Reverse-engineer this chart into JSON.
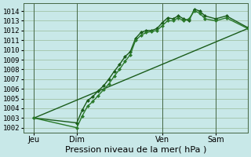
{
  "bg_color": "#c8e8e8",
  "grid_color": "#99bb99",
  "line_color_dark": "#1a5c1a",
  "line_color_mid": "#2a7a2a",
  "title": "Pression niveau de la mer( hPa )",
  "ylabel_ticks": [
    1002,
    1003,
    1004,
    1005,
    1006,
    1007,
    1008,
    1009,
    1010,
    1011,
    1012,
    1013,
    1014
  ],
  "ylim": [
    1001.5,
    1014.8
  ],
  "xlim": [
    0,
    84
  ],
  "xtick_positions": [
    4,
    20,
    52,
    72
  ],
  "xtick_labels": [
    "Jeu",
    "Dim",
    "Ven",
    "Sam"
  ],
  "vlines": [
    4,
    20,
    52,
    72
  ],
  "series1_x": [
    4,
    20,
    22,
    24,
    26,
    28,
    30,
    32,
    34,
    36,
    38,
    40,
    42,
    44,
    46,
    48,
    50,
    52,
    54,
    56,
    58,
    60,
    62,
    64,
    66,
    68,
    72,
    76,
    84
  ],
  "series1_y": [
    1003.0,
    1002.5,
    1003.8,
    1004.8,
    1005.2,
    1005.8,
    1006.3,
    1007.0,
    1007.8,
    1008.5,
    1009.3,
    1009.8,
    1011.2,
    1011.8,
    1012.0,
    1012.0,
    1012.2,
    1012.8,
    1013.3,
    1013.2,
    1013.5,
    1013.2,
    1013.0,
    1014.2,
    1014.0,
    1013.5,
    1013.2,
    1013.5,
    1012.3
  ],
  "series2_x": [
    4,
    20,
    22,
    24,
    26,
    28,
    30,
    32,
    34,
    36,
    38,
    40,
    42,
    44,
    46,
    48,
    50,
    52,
    54,
    56,
    58,
    60,
    62,
    64,
    66,
    68,
    72,
    76,
    84
  ],
  "series2_y": [
    1003.0,
    1002.0,
    1003.2,
    1004.2,
    1004.7,
    1005.3,
    1005.9,
    1006.5,
    1007.3,
    1008.0,
    1008.8,
    1009.5,
    1011.0,
    1011.5,
    1011.8,
    1011.9,
    1012.0,
    1012.5,
    1013.0,
    1013.0,
    1013.3,
    1013.0,
    1013.2,
    1014.0,
    1013.8,
    1013.2,
    1013.0,
    1013.3,
    1012.2
  ],
  "series3_x": [
    4,
    84
  ],
  "series3_y": [
    1003.0,
    1012.2
  ],
  "marker_size": 2.5,
  "linewidth": 1.0,
  "title_fontsize": 8,
  "tick_fontsize": 6.5
}
